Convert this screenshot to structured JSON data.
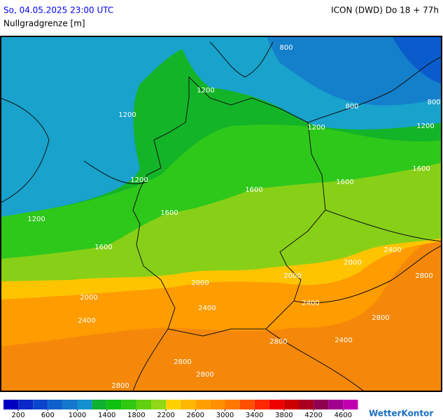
{
  "header": {
    "datetime": "So, 04.05.2025 23:00 UTC",
    "model": "ICON (DWD) Do 18 + 77h",
    "parameter": "Nullgradgrenze [m]"
  },
  "map": {
    "contour_labels": [
      800,
      800,
      800,
      1200,
      1200,
      1200,
      1200,
      1200,
      1200,
      1600,
      1600,
      1600,
      1600,
      1600,
      2000,
      2000,
      2000,
      2000,
      2400,
      2400,
      2400,
      2400,
      2400,
      2800,
      2800,
      2800,
      2800,
      2800,
      2800
    ]
  },
  "legend": {
    "colors": [
      "#0000c0",
      "#0a28c8",
      "#0a46cc",
      "#1060cc",
      "#1478cc",
      "#1490d0",
      "#10b030",
      "#10c010",
      "#30c810",
      "#60d010",
      "#90d818",
      "#ffd000",
      "#ffb800",
      "#ffa000",
      "#ff9000",
      "#ff7800",
      "#ff5000",
      "#ff2800",
      "#ee0000",
      "#cc0000",
      "#aa0020",
      "#900050",
      "#a00090",
      "#c000b0"
    ],
    "ticks": [
      200,
      600,
      1000,
      1400,
      1800,
      2200,
      2600,
      3000,
      3400,
      3800,
      4200,
      4600
    ]
  },
  "logo": "WetterKontor"
}
